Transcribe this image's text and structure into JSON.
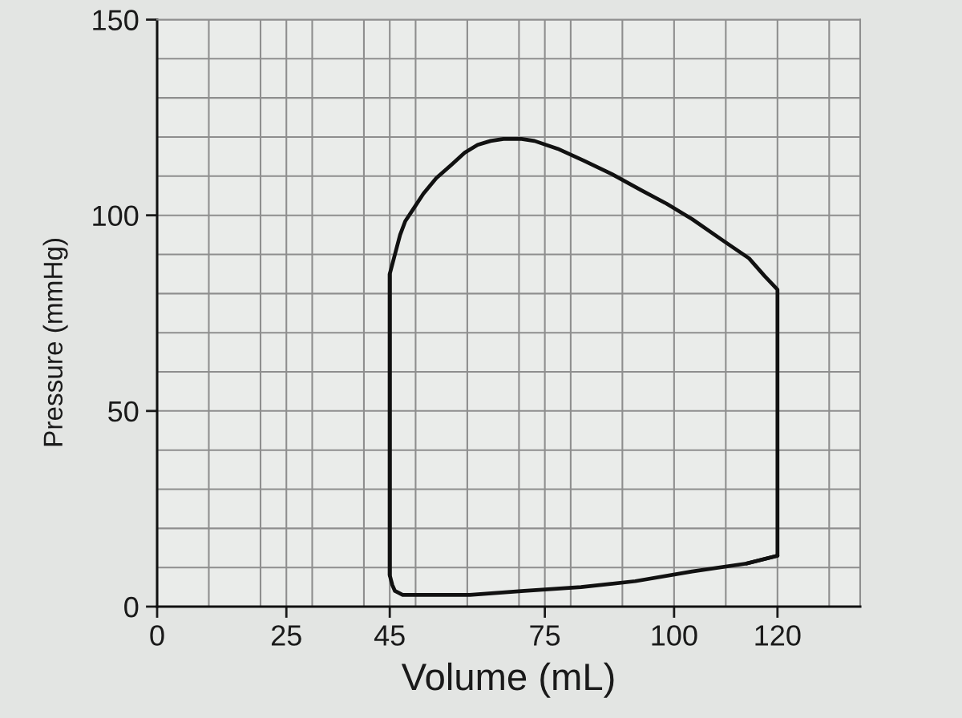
{
  "chart_data": {
    "type": "line",
    "xlabel": "Volume (mL)",
    "ylabel": "Pressure (mmHg)",
    "series": [
      {
        "color": "#111111",
        "x": [
          114,
          120,
          120,
          117.5,
          114.5,
          109.5,
          103.5,
          98.5,
          93.5,
          88,
          82.5,
          77.5,
          73,
          70.5,
          67,
          64.5,
          62,
          59.5,
          57,
          54,
          51.5,
          49.5,
          48,
          47,
          46,
          45,
          45
        ],
        "values": [
          11,
          13,
          81,
          84.5,
          89,
          93.5,
          99,
          103,
          106.5,
          110.5,
          114,
          117,
          119,
          119.5,
          119.5,
          119,
          118,
          116,
          113,
          109.5,
          105.5,
          101.5,
          98.5,
          95,
          90,
          85,
          8
        ]
      },
      {
        "color": "#111111",
        "x": [
          45,
          45,
          45.5,
          46,
          47.5,
          50,
          60.5,
          71,
          82,
          92.5,
          103.5,
          114,
          120
        ],
        "values": [
          85,
          8,
          5.5,
          4,
          3,
          3,
          3,
          4,
          5,
          6.5,
          9,
          11,
          13
        ]
      }
    ],
    "xlim": [
      0,
      136
    ],
    "ylim": [
      0,
      150
    ],
    "xticks": [
      0,
      {
        "value": 10,
        "label": null
      },
      {
        "value": 20,
        "label": null
      },
      25,
      {
        "value": 30,
        "label": null
      },
      {
        "value": 40,
        "label": null
      },
      45,
      {
        "value": 50,
        "label": null
      },
      {
        "value": 60,
        "label": null
      },
      {
        "value": 70,
        "label": null
      },
      75,
      {
        "value": 80,
        "label": null
      },
      {
        "value": 90,
        "label": null
      },
      100,
      {
        "value": 110,
        "label": null
      },
      120,
      {
        "value": 130,
        "label": null
      }
    ],
    "yticks": [
      0,
      {
        "value": 10,
        "label": null
      },
      {
        "value": 20,
        "label": null
      },
      {
        "value": 30,
        "label": null
      },
      {
        "value": 40,
        "label": null
      },
      50,
      {
        "value": 60,
        "label": null
      },
      {
        "value": 70,
        "label": null
      },
      {
        "value": 80,
        "label": null
      },
      {
        "value": 90,
        "label": null
      },
      100,
      {
        "value": 110,
        "label": null
      },
      {
        "value": 120,
        "label": null
      },
      {
        "value": 130,
        "label": null
      },
      {
        "value": 140,
        "label": null
      },
      150
    ],
    "grid": true
  }
}
